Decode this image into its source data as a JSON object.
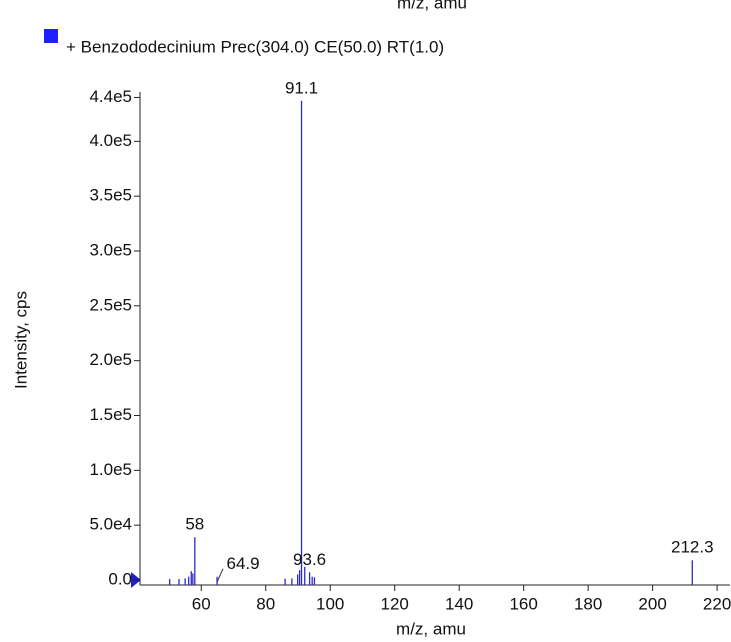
{
  "chart_data": {
    "type": "stick",
    "top_text": "m/z, amu",
    "legend": "+ Benzododecinium  Prec(304.0) CE(50.0) RT(1.0)",
    "legend_color": "#1f1fff",
    "color": "#2a2acc",
    "xlabel": "m/z, amu",
    "ylabel": "Intensity, cps",
    "x": [
      50.2,
      53.1,
      55.0,
      56.1,
      56.9,
      57.4,
      58.0,
      64.9,
      86.0,
      88.1,
      89.9,
      90.5,
      91.1,
      92.1,
      93.6,
      94.4,
      95.1,
      212.3
    ],
    "values": [
      800,
      900,
      1500,
      3000,
      8000,
      6000,
      39000,
      3000,
      1200,
      1500,
      5000,
      9000,
      437000,
      12000,
      7000,
      3000,
      2500,
      18000
    ],
    "labeled": [
      58.0,
      64.9,
      91.1,
      93.6,
      212.3
    ],
    "xlim": [
      41,
      224
    ],
    "xticks": [
      60,
      80,
      100,
      120,
      140,
      160,
      180,
      200,
      220
    ],
    "ylim": [
      0,
      445000
    ],
    "yticks": [
      {
        "value": 0,
        "label": "0.0"
      },
      {
        "value": 50000,
        "label": "5.0e4"
      },
      {
        "value": 100000,
        "label": "1.0e5"
      },
      {
        "value": 150000,
        "label": "1.5e5"
      },
      {
        "value": 200000,
        "label": "2.0e5"
      },
      {
        "value": 250000,
        "label": "2.5e5"
      },
      {
        "value": 300000,
        "label": "3.0e5"
      },
      {
        "value": 350000,
        "label": "3.5e5"
      },
      {
        "value": 400000,
        "label": "4.0e5"
      },
      {
        "value": 440000,
        "label": "4.4e5"
      }
    ]
  }
}
